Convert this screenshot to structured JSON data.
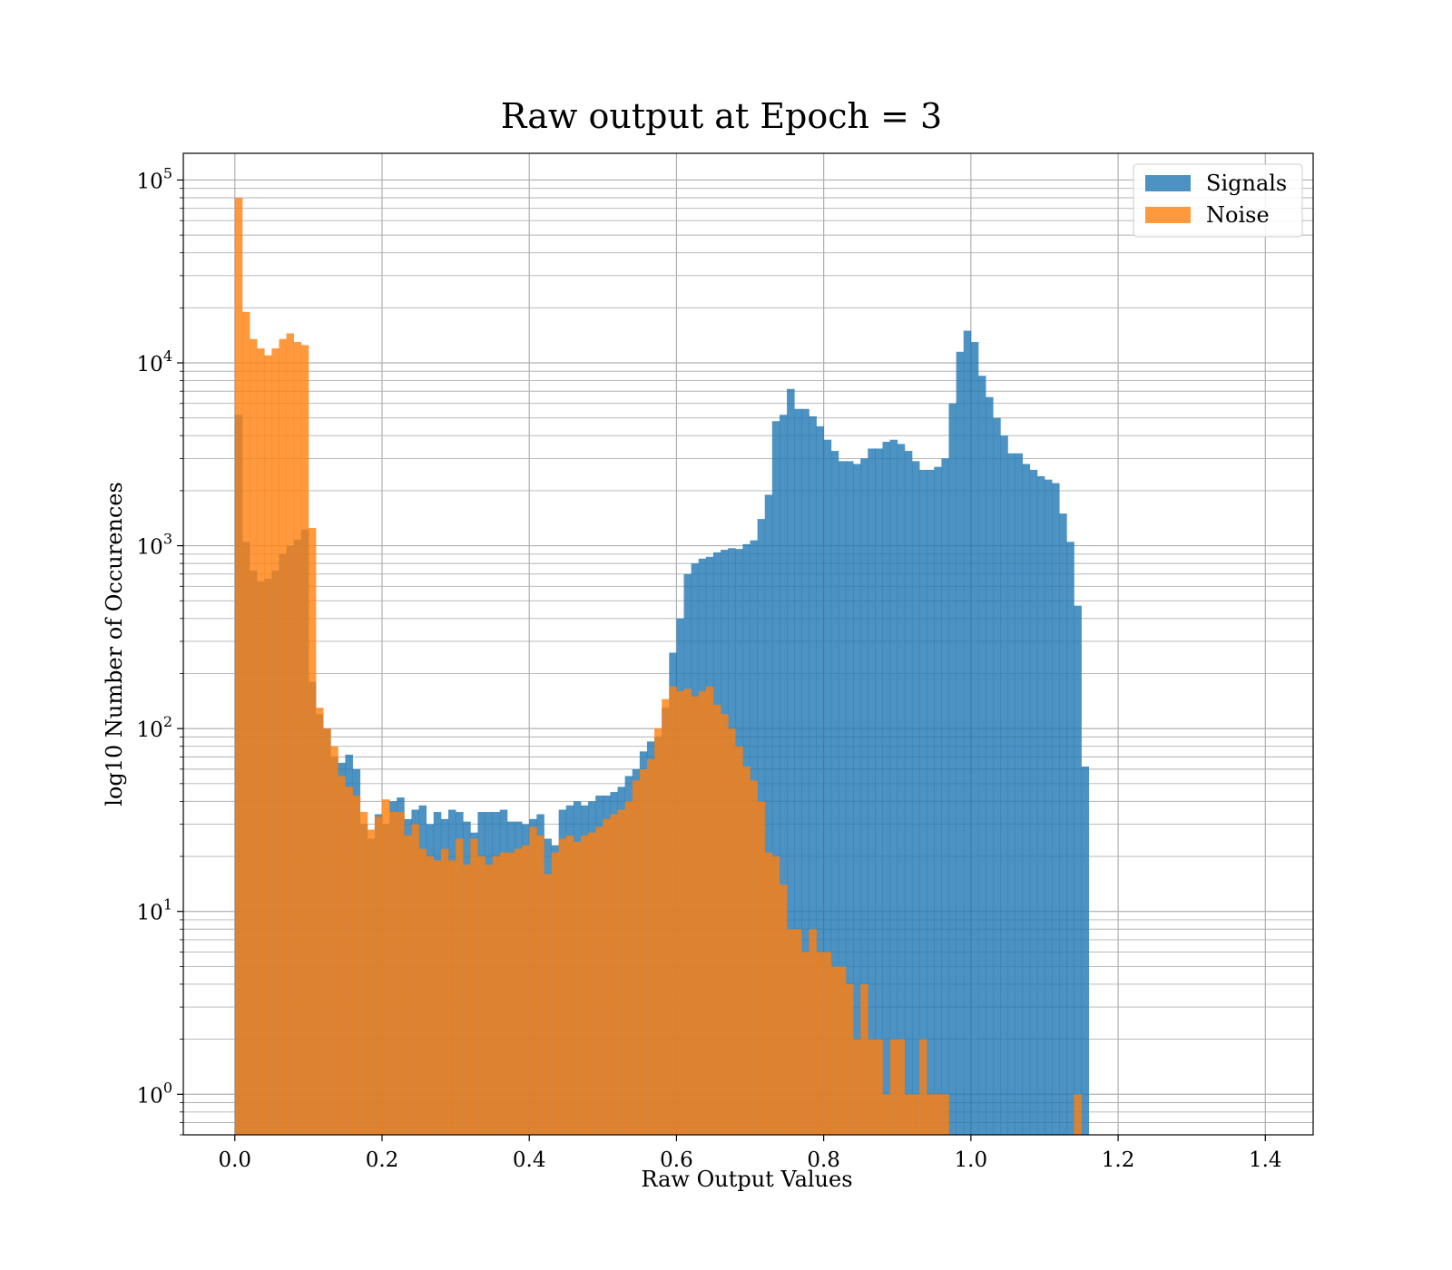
{
  "chart_data": {
    "type": "bar",
    "title": "Raw output at Epoch = 3",
    "xlabel": "Raw Output Values",
    "ylabel": "log10 Number of Occurences",
    "xlim": [
      -0.07,
      1.465
    ],
    "ylim": [
      0.6,
      140000
    ],
    "yscale": "log",
    "grid": true,
    "legend_position": "top-right",
    "x_ticks": [
      "0.0",
      "0.2",
      "0.4",
      "0.6",
      "0.8",
      "1.0",
      "1.2",
      "1.4"
    ],
    "x_tick_values": [
      0,
      0.2,
      0.4,
      0.6,
      0.8,
      1.0,
      1.2,
      1.4
    ],
    "y_ticks": [
      {
        "base": "10",
        "exp": "0",
        "value": 1
      },
      {
        "base": "10",
        "exp": "1",
        "value": 10
      },
      {
        "base": "10",
        "exp": "2",
        "value": 100
      },
      {
        "base": "10",
        "exp": "3",
        "value": 1000
      },
      {
        "base": "10",
        "exp": "4",
        "value": 10000
      },
      {
        "base": "10",
        "exp": "5",
        "value": 100000
      }
    ],
    "bin_start": 0.0,
    "bin_width": 0.01,
    "series": [
      {
        "name": "Signals",
        "color": "#1f77b4",
        "opacity": 0.8,
        "values": [
          5200,
          1050,
          730,
          640,
          660,
          730,
          900,
          1000,
          1080,
          1230,
          180,
          120,
          100,
          70,
          65,
          72,
          60,
          30,
          25,
          34,
          30,
          40,
          42,
          32,
          36,
          38,
          30,
          35,
          32,
          36,
          35,
          31,
          27,
          35,
          35,
          35,
          36,
          31,
          31,
          30,
          32,
          34,
          25,
          23,
          36,
          38,
          40,
          38,
          40,
          43,
          43,
          45,
          48,
          55,
          60,
          75,
          85,
          90,
          130,
          260,
          400,
          700,
          800,
          850,
          870,
          920,
          950,
          970,
          960,
          1020,
          1070,
          1400,
          1900,
          4800,
          5200,
          7200,
          5600,
          5600,
          5100,
          4500,
          3800,
          3300,
          2900,
          2900,
          2800,
          3000,
          3400,
          3400,
          3700,
          3800,
          3600,
          3300,
          2900,
          2600,
          2600,
          2700,
          3000,
          6000,
          11500,
          15000,
          13000,
          8500,
          6500,
          5000,
          4000,
          3200,
          3200,
          2800,
          2600,
          2400,
          2300,
          2200,
          1500,
          1050,
          470,
          62
        ]
      },
      {
        "name": "Noise",
        "color": "#ff7f0e",
        "opacity": 0.8,
        "values": [
          80000,
          19000,
          13500,
          12000,
          11000,
          12000,
          13500,
          14500,
          13000,
          12500,
          1250,
          130,
          100,
          80,
          55,
          48,
          43,
          35,
          28,
          33,
          41,
          35,
          35,
          26,
          30,
          22,
          20,
          19,
          22,
          19,
          25,
          18,
          25,
          20,
          18,
          20,
          21,
          21,
          22,
          23,
          29,
          26,
          16,
          21,
          25,
          26,
          24,
          26,
          27,
          29,
          32,
          34,
          36,
          40,
          52,
          60,
          68,
          100,
          145,
          170,
          160,
          165,
          150,
          160,
          170,
          135,
          120,
          100,
          80,
          62,
          52,
          40,
          21,
          20,
          14,
          8,
          8,
          6,
          8,
          6,
          6,
          5,
          5,
          4,
          2,
          4,
          2,
          2,
          1,
          2,
          2,
          1,
          1,
          2,
          1,
          1,
          1,
          0,
          0,
          0,
          0,
          0,
          0,
          0,
          0,
          0,
          0,
          0,
          0,
          0,
          0,
          0,
          0,
          0,
          1,
          0,
          0,
          0,
          0,
          0,
          0,
          0,
          0
        ]
      }
    ]
  }
}
